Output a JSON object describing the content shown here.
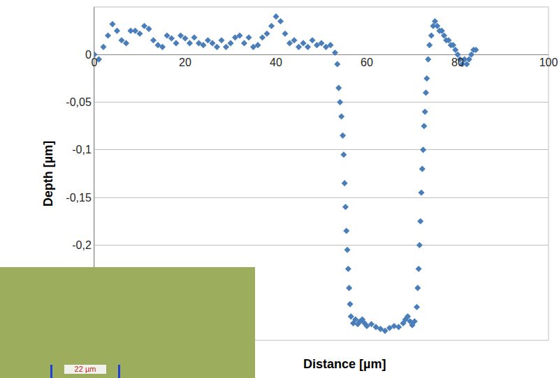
{
  "chart_data": {
    "type": "scatter",
    "x_label": "Distance [µm]",
    "y_label": "Depth [µm]",
    "annotations": [
      "22 µm"
    ],
    "color": "#4a7ebb",
    "marker": "diamond",
    "grid": true,
    "xlim": [
      0,
      100
    ],
    "ylim": [
      -0.3,
      0.05
    ],
    "xticks": [
      0,
      20,
      40,
      60,
      80,
      100
    ],
    "yticks": [
      0,
      {
        "value": -0.05,
        "label": "-0,05"
      },
      {
        "value": -0.1,
        "label": "-0,1"
      },
      {
        "value": -0.15,
        "label": "-0,15"
      },
      {
        "value": -0.2,
        "label": "-0,2"
      }
    ],
    "x": [
      0,
      1,
      2,
      3,
      4,
      5,
      6,
      7,
      8,
      9,
      10,
      11,
      12,
      13,
      14,
      15,
      16,
      17,
      18,
      19,
      20,
      21,
      22,
      23,
      24,
      25,
      26,
      27,
      28,
      29,
      30,
      31,
      32,
      33,
      34,
      35,
      36,
      37,
      38,
      39,
      40,
      41,
      42,
      43,
      44,
      45,
      46,
      47,
      48,
      49,
      50,
      51,
      52,
      53,
      53.5,
      53.8,
      54.1,
      54.4,
      54.7,
      54.9,
      55.1,
      55.3,
      55.5,
      55.7,
      55.9,
      56.1,
      56.3,
      56.5,
      57,
      57.5,
      58,
      58.5,
      59,
      59.5,
      60,
      61,
      62,
      63,
      64,
      65,
      66,
      67,
      68,
      68.5,
      69,
      69.5,
      70,
      70.5,
      71,
      71.2,
      71.4,
      71.6,
      71.8,
      72,
      72.2,
      72.4,
      72.6,
      72.8,
      73,
      73.2,
      73.5,
      73.8,
      74.2,
      74.6,
      75,
      75.5,
      76,
      76.5,
      77,
      77.5,
      78,
      78.5,
      79,
      79.5,
      80,
      80.5,
      81,
      81.5,
      82,
      82.5,
      83,
      83.5,
      84
    ],
    "values": [
      0,
      -0.005,
      0.008,
      0.02,
      0.032,
      0.025,
      0.015,
      0.012,
      0.025,
      0.025,
      0.022,
      0.03,
      0.027,
      0.015,
      0.01,
      0.008,
      0.02,
      0.017,
      0.012,
      0.02,
      0.017,
      0.012,
      0.018,
      0.012,
      0.01,
      0.015,
      0.012,
      0.008,
      0.015,
      0.008,
      0.012,
      0.018,
      0.02,
      0.012,
      0.018,
      0.008,
      0.01,
      0.018,
      0.022,
      0.03,
      0.04,
      0.035,
      0.022,
      0.012,
      0.015,
      0.008,
      0.012,
      0.008,
      0.015,
      0.01,
      0.012,
      0.008,
      0.01,
      0.002,
      -0.01,
      -0.035,
      -0.05,
      -0.065,
      -0.085,
      -0.105,
      -0.135,
      -0.16,
      -0.185,
      -0.205,
      -0.225,
      -0.245,
      -0.262,
      -0.275,
      -0.282,
      -0.278,
      -0.283,
      -0.28,
      -0.278,
      -0.282,
      -0.285,
      -0.283,
      -0.286,
      -0.288,
      -0.29,
      -0.287,
      -0.285,
      -0.286,
      -0.282,
      -0.278,
      -0.275,
      -0.28,
      -0.284,
      -0.28,
      -0.265,
      -0.245,
      -0.225,
      -0.2,
      -0.175,
      -0.145,
      -0.12,
      -0.1,
      -0.075,
      -0.06,
      -0.04,
      -0.025,
      -0.005,
      0.01,
      0.02,
      0.03,
      0.035,
      0.03,
      0.025,
      0.025,
      0.02,
      0.015,
      0.015,
      0.01,
      0.01,
      0.005,
      0,
      -0.005,
      -0.01,
      -0.005,
      -0.01,
      -0.005,
      0,
      0.005,
      0.005
    ]
  }
}
